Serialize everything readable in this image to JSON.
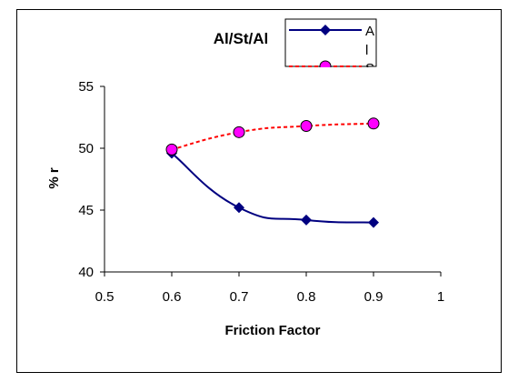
{
  "chart_data": {
    "type": "line",
    "title": "Al/St/Al",
    "xlabel": "Friction Factor",
    "ylabel": "% r",
    "xlim": [
      0.5,
      1
    ],
    "ylim": [
      40,
      55
    ],
    "x_ticks": [
      "0.5",
      "0.6",
      "0.7",
      "0.8",
      "0.9",
      "1"
    ],
    "y_ticks": [
      "40",
      "45",
      "50",
      "55"
    ],
    "grid": false,
    "legend_position": "top-right",
    "series": [
      {
        "name": "Al",
        "legend_fragments": [
          "A",
          "l"
        ],
        "color": "#000080",
        "marker": "diamond",
        "line_style": "solid",
        "x": [
          0.6,
          0.7,
          0.8,
          0.9
        ],
        "y": [
          49.6,
          45.2,
          44.2,
          44.0
        ]
      },
      {
        "name": "St",
        "legend_fragments": [
          "S"
        ],
        "color": "#ff0000",
        "marker_fill": "#ff00ff",
        "marker": "circle",
        "line_style": "dashed",
        "x": [
          0.6,
          0.7,
          0.8,
          0.9
        ],
        "y": [
          49.9,
          51.3,
          51.8,
          52.0
        ]
      }
    ]
  }
}
